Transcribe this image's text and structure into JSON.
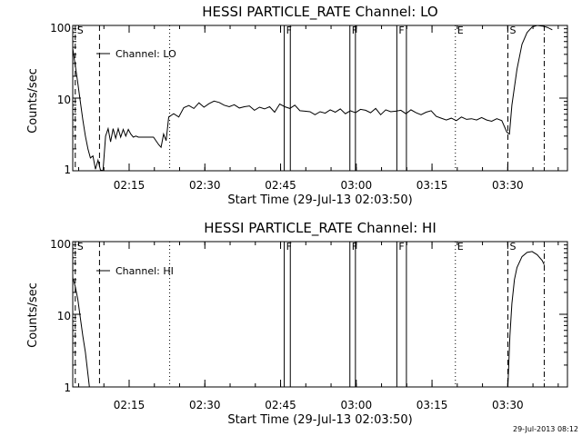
{
  "timestamp": "29-Jul-2013 08:12",
  "chart_data": [
    {
      "type": "line",
      "title": "HESSI PARTICLE_RATE Channel: LO",
      "xlabel": "Start Time (29-Jul-13 02:03:50)",
      "ylabel": "Counts/sec",
      "ylog": true,
      "ylim": [
        1,
        100
      ],
      "xlim_minutes": [
        0,
        98
      ],
      "y_ticks": [
        "1",
        "10",
        "100"
      ],
      "x_ticks": [
        {
          "t": 11.17,
          "label": "02:15"
        },
        {
          "t": 26.17,
          "label": "02:30"
        },
        {
          "t": 41.17,
          "label": "02:45"
        },
        {
          "t": 56.17,
          "label": "03:00"
        },
        {
          "t": 71.17,
          "label": "03:15"
        },
        {
          "t": 86.17,
          "label": "03:30"
        }
      ],
      "legend": "Channel: LO",
      "color": "#000000",
      "series": [
        {
          "name": "Channel: LO",
          "t": [
            0,
            0.5,
            1,
            1.5,
            2,
            2.5,
            3,
            3.5,
            4,
            4.5,
            5,
            5.5,
            6,
            6.5,
            7,
            7.5,
            8,
            8.5,
            9,
            9.5,
            10,
            10.5,
            11,
            11.5,
            12,
            12.5,
            13,
            14,
            15,
            16,
            17,
            17.5,
            18,
            18.5,
            19,
            20,
            21,
            22,
            23,
            24,
            25,
            26,
            27,
            28,
            29,
            30,
            31,
            32,
            33,
            34,
            35,
            36,
            37,
            38,
            39,
            40,
            41,
            42,
            43,
            44,
            45,
            46,
            47,
            48,
            49,
            50,
            51,
            52,
            53,
            54,
            55,
            56,
            57,
            58,
            59,
            60,
            61,
            62,
            63,
            64,
            65,
            66,
            67,
            68,
            69,
            70,
            71,
            72,
            73,
            74,
            75,
            76,
            77,
            78,
            79,
            80,
            81,
            82,
            83,
            84,
            85,
            86,
            86.5,
            87,
            88,
            89,
            90,
            91,
            92,
            93,
            94,
            95
          ],
          "y": [
            48,
            28,
            16,
            9,
            5,
            3,
            2,
            1.5,
            1.6,
            1.05,
            1.4,
            1.02,
            1.01,
            3,
            3.8,
            2.5,
            3.8,
            2.8,
            3.8,
            2.9,
            3.7,
            3,
            3.7,
            3.2,
            2.9,
            3,
            2.9,
            2.9,
            2.9,
            2.9,
            2.3,
            2.1,
            3.2,
            2.6,
            5.5,
            6.1,
            5.5,
            7.4,
            7.9,
            7.2,
            8.6,
            7.5,
            8.4,
            9.1,
            8.7,
            8.0,
            7.6,
            8.1,
            7.3,
            7.6,
            7.8,
            6.8,
            7.5,
            7.1,
            7.6,
            6.4,
            8.3,
            7.6,
            7.2,
            8.0,
            6.7,
            6.6,
            6.5,
            5.9,
            6.5,
            6.2,
            6.9,
            6.4,
            7.1,
            6.1,
            6.7,
            6.3,
            7.0,
            6.8,
            6.3,
            7.2,
            5.9,
            6.9,
            6.5,
            6.6,
            6.8,
            6.1,
            6.9,
            6.3,
            5.9,
            6.4,
            6.7,
            5.6,
            5.3,
            5.0,
            5.3,
            4.9,
            5.5,
            5.1,
            5.2,
            5.0,
            5.4,
            5.0,
            4.8,
            5.2,
            4.9,
            3.4,
            3.2,
            8,
            25,
            55,
            80,
            95,
            100,
            98,
            94,
            87
          ]
        }
      ],
      "markers": [
        {
          "t": 0.5,
          "label": "S",
          "style": "dashed"
        },
        {
          "t": 5.3,
          "label": "",
          "style": "dashed"
        },
        {
          "t": 19.2,
          "label": "",
          "style": "dotted"
        },
        {
          "t": 41.9,
          "label": "F",
          "style": "solid"
        },
        {
          "t": 43.1,
          "label": "",
          "style": "solid"
        },
        {
          "t": 54.9,
          "label": "F",
          "style": "solid"
        },
        {
          "t": 56.0,
          "label": "",
          "style": "solid"
        },
        {
          "t": 64.2,
          "label": "F",
          "style": "solid"
        },
        {
          "t": 66.1,
          "label": "",
          "style": "solid"
        },
        {
          "t": 75.8,
          "label": "E",
          "style": "dotted"
        },
        {
          "t": 86.2,
          "label": "S",
          "style": "dashed"
        },
        {
          "t": 93.4,
          "label": "",
          "style": "dashdot"
        }
      ]
    },
    {
      "type": "line",
      "title": "HESSI PARTICLE_RATE Channel: HI",
      "xlabel": "Start Time (29-Jul-13 02:03:50)",
      "ylabel": "Counts/sec",
      "ylog": true,
      "ylim": [
        1,
        100
      ],
      "xlim_minutes": [
        0,
        98
      ],
      "y_ticks": [
        "1",
        "10",
        "100"
      ],
      "x_ticks": [
        {
          "t": 11.17,
          "label": "02:15"
        },
        {
          "t": 26.17,
          "label": "02:30"
        },
        {
          "t": 41.17,
          "label": "02:45"
        },
        {
          "t": 56.17,
          "label": "03:00"
        },
        {
          "t": 71.17,
          "label": "03:15"
        },
        {
          "t": 86.17,
          "label": "03:30"
        }
      ],
      "legend": "Channel: HI",
      "color": "#000000",
      "series": [
        {
          "name": "Channel: HI",
          "t": [
            0,
            0.5,
            1,
            1.5,
            2,
            2.5,
            3,
            3.3,
            86.2,
            86.6,
            87,
            87.5,
            88,
            89,
            90,
            91,
            92,
            93,
            93.4
          ],
          "y": [
            32,
            24,
            16,
            9,
            5,
            3,
            1.5,
            1.0,
            1.0,
            5,
            14,
            30,
            44,
            62,
            71,
            73,
            66,
            55,
            48
          ]
        }
      ],
      "markers": [
        {
          "t": 0.5,
          "label": "S",
          "style": "dashed"
        },
        {
          "t": 5.3,
          "label": "",
          "style": "dashed"
        },
        {
          "t": 19.2,
          "label": "",
          "style": "dotted"
        },
        {
          "t": 41.9,
          "label": "F",
          "style": "solid"
        },
        {
          "t": 43.1,
          "label": "",
          "style": "solid"
        },
        {
          "t": 54.9,
          "label": "F",
          "style": "solid"
        },
        {
          "t": 56.0,
          "label": "",
          "style": "solid"
        },
        {
          "t": 64.2,
          "label": "F",
          "style": "solid"
        },
        {
          "t": 66.1,
          "label": "",
          "style": "solid"
        },
        {
          "t": 75.8,
          "label": "E",
          "style": "dotted"
        },
        {
          "t": 86.2,
          "label": "S",
          "style": "dashed"
        },
        {
          "t": 93.4,
          "label": "",
          "style": "dashdot"
        }
      ]
    }
  ]
}
